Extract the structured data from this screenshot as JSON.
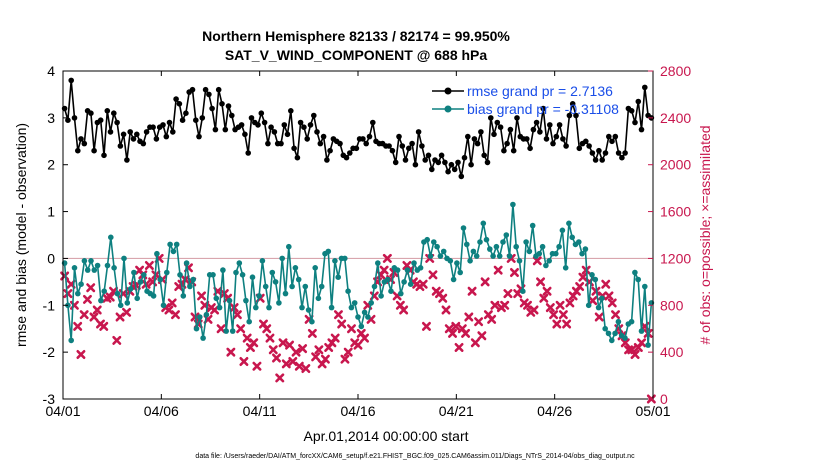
{
  "chart_data": {
    "type": "line",
    "title_line1": "Northern Hemisphere 82133 / 82174 = 99.950%",
    "title_line2": "SAT_V_WIND_COMPONENT @ 688 hPa",
    "xlabel": "Apr.01,2014 00:00:00 start",
    "ylabel_left": "rmse and bias (model - observation)",
    "ylabel_right": "# of obs: o=possible; ×=assimilated",
    "footer": "data file: /Users/raeder/DAI/ATM_forcXX/CAM6_setup/f.e21.FHIST_BGC.f09_025.CAM6assim.011/Diags_NTrS_2014-04/obs_diag_output.nc",
    "xlim": [
      0,
      30
    ],
    "ylim_left": [
      -3,
      4
    ],
    "ylim_right": [
      0,
      2800
    ],
    "x_ticks": [
      0,
      5,
      10,
      15,
      20,
      25,
      30
    ],
    "x_tick_labels": [
      "04/01",
      "04/06",
      "04/11",
      "04/16",
      "04/21",
      "04/26",
      "05/01"
    ],
    "y_ticks_left": [
      -3,
      -2,
      -1,
      0,
      1,
      2,
      3,
      4
    ],
    "y_tick_labels_left": [
      "-3",
      "-2",
      "-1",
      "0",
      "1",
      "2",
      "3",
      "4"
    ],
    "y_ticks_right": [
      0,
      400,
      800,
      1200,
      1600,
      2000,
      2400,
      2800
    ],
    "y_tick_labels_right": [
      "0",
      "400",
      "800",
      "1200",
      "1600",
      "2000",
      "2400",
      "2800"
    ],
    "colors": {
      "rmse": "#000000",
      "bias": "#0e8080",
      "obs": "#c8174e",
      "zero_line": "#d9a6ae",
      "legend_text": "#1a4ee8"
    },
    "series": [
      {
        "name": "rmse grand pr = 2.7136",
        "values": [
          3.2,
          2.95,
          3.8,
          3.0,
          2.3,
          2.55,
          2.45,
          3.15,
          3.1,
          2.3,
          2.9,
          2.95,
          2.2,
          3.15,
          2.7,
          3.1,
          2.9,
          2.4,
          2.65,
          2.1,
          2.7,
          2.55,
          2.65,
          2.5,
          2.45,
          2.7,
          2.8,
          2.8,
          2.55,
          2.8,
          2.85,
          2.6,
          2.9,
          2.7,
          3.4,
          3.3,
          2.95,
          3.1,
          3.55,
          3.6,
          2.95,
          2.6,
          3.0,
          3.6,
          3.5,
          3.2,
          2.75,
          3.6,
          3.3,
          2.75,
          3.25,
          3.05,
          2.75,
          2.8,
          2.85,
          2.65,
          2.25,
          3.0,
          2.9,
          2.85,
          3.1,
          2.9,
          2.45,
          2.8,
          2.7,
          2.45,
          2.45,
          2.85,
          2.65,
          3.15,
          2.35,
          2.15,
          2.9,
          2.8,
          2.55,
          2.85,
          3.05,
          2.7,
          2.45,
          2.6,
          2.1,
          2.3,
          2.55,
          2.5,
          2.45,
          2.2,
          2.15,
          2.25,
          2.35,
          2.35,
          2.55,
          2.55,
          2.45,
          2.6,
          2.9,
          2.5,
          2.45,
          2.45,
          2.4,
          2.4,
          2.3,
          2.05,
          2.6,
          2.4,
          2.1,
          2.35,
          2.45,
          2.0,
          2.7,
          2.4,
          2.1,
          2.2,
          1.9,
          2.1,
          2.05,
          2.2,
          2.05,
          1.85,
          2.0,
          1.9,
          2.05,
          1.75,
          2.15,
          2.6,
          2.0,
          2.55,
          2.45,
          2.7,
          2.2,
          2.05,
          3.0,
          2.65,
          2.9,
          2.8,
          2.3,
          2.45,
          2.75,
          2.3,
          3.0,
          2.6,
          2.55,
          2.55,
          2.35,
          2.75,
          2.9,
          2.7,
          3.2,
          2.55,
          2.85,
          2.45,
          2.6,
          2.85,
          2.55,
          2.4,
          3.05,
          3.3,
          3.05,
          2.35,
          2.45,
          2.5,
          2.4,
          2.25,
          2.1,
          2.3,
          2.1,
          2.25,
          2.6,
          2.5,
          2.6,
          2.25,
          2.15,
          2.25,
          3.2,
          3.15,
          2.9,
          3.35,
          2.75,
          3.65,
          3.05,
          3.0
        ],
        "color": "#000000",
        "marker": "circle"
      },
      {
        "name": "bias grand pr = -0.31108",
        "values": [
          -0.1,
          -1.0,
          -1.75,
          -0.2,
          -0.75,
          -0.55,
          -0.05,
          -0.25,
          -0.05,
          -0.25,
          -0.15,
          -0.9,
          -0.7,
          -0.15,
          0.45,
          -0.2,
          -0.75,
          -1.0,
          0.0,
          -0.95,
          -0.65,
          -0.3,
          -0.85,
          -0.5,
          -0.35,
          -0.7,
          -0.75,
          -0.8,
          0.1,
          -0.45,
          -1.0,
          -0.3,
          0.3,
          0.15,
          0.3,
          -0.35,
          -0.8,
          -0.1,
          -0.6,
          -0.45,
          -1.5,
          -1.25,
          -1.7,
          -1.2,
          -0.35,
          -0.35,
          -0.85,
          -1.05,
          -0.25,
          -1.55,
          -0.9,
          -1.55,
          -0.3,
          -0.1,
          -0.35,
          -0.9,
          -1.35,
          -0.4,
          -1.05,
          -0.8,
          -0.05,
          -0.6,
          -1.05,
          -0.3,
          -0.5,
          -0.95,
          0.0,
          -0.75,
          0.25,
          -0.6,
          -0.2,
          -0.45,
          -1.05,
          -0.6,
          -1.1,
          -1.35,
          -0.2,
          -0.85,
          -0.6,
          0.1,
          0.15,
          -1.05,
          -0.05,
          -0.4,
          0.0,
          0.0,
          -0.7,
          -1.05,
          -0.95,
          -1.25,
          -1.45,
          -1.15,
          -1.25,
          -0.95,
          -0.6,
          -0.1,
          -0.8,
          -0.5,
          -0.45,
          -0.7,
          -0.2,
          -0.25,
          -0.75,
          -0.5,
          -0.25,
          -0.55,
          -0.1,
          -0.25,
          -0.2,
          0.35,
          0.4,
          0.05,
          0.35,
          0.25,
          0.05,
          0.15,
          0.0,
          -0.05,
          -0.45,
          -0.1,
          -0.3,
          0.65,
          0.3,
          -0.05,
          0.15,
          0.05,
          0.35,
          0.75,
          0.4,
          0.2,
          0.05,
          0.25,
          0.05,
          0.35,
          0.5,
          0.05,
          1.15,
          0.25,
          -0.05,
          -0.7,
          0.35,
          0.15,
          0.7,
          0.05,
          0.1,
          0.25,
          -0.15,
          -0.05,
          0.1,
          0.1,
          0.25,
          0.6,
          -0.2,
          0.75,
          0.45,
          0.3,
          0.35,
          0.1,
          0.2,
          -1.0,
          -0.35,
          -0.45,
          -1.05,
          -0.85,
          -1.5,
          -1.6,
          -1.75,
          -1.6,
          -1.35,
          -1.65,
          -1.7,
          -1.4,
          -1.35,
          -0.3,
          -0.45,
          -1.55,
          -0.6,
          -1.85,
          -0.95
        ],
        "color": "#0e8080",
        "marker": "circle"
      },
      {
        "name": "# of obs assimilated",
        "values": [
          1050,
          900,
          980,
          800,
          620,
          380,
          720,
          850,
          950,
          700,
          760,
          640,
          620,
          860,
          870,
          920,
          500,
          700,
          900,
          740,
          920,
          960,
          970,
          1100,
          1060,
          980,
          1140,
          1000,
          1060,
          1200,
          1020,
          780,
          760,
          820,
          720,
          960,
          980,
          1020,
          1120,
          1000,
          700,
          640,
          880,
          800,
          680,
          780,
          760,
          920,
          600,
          900,
          860,
          400,
          780,
          720,
          600,
          320,
          520,
          440,
          480,
          280,
          860,
          640,
          600,
          520,
          420,
          350,
          180,
          480,
          300,
          460,
          320,
          400,
          280,
          430,
          260,
          680,
          560,
          360,
          420,
          300,
          340,
          440,
          480,
          520,
          720,
          640,
          340,
          400,
          600,
          480,
          460,
          560,
          520,
          800,
          680,
          880,
          1000,
          1060,
          1100,
          1200,
          1020,
          1080,
          880,
          800,
          760,
          1140,
          1100,
          1000,
          980,
          960,
          980,
          620,
          1200,
          1060,
          920,
          900,
          860,
          760,
          600,
          560,
          620,
          440,
          600,
          560,
          700,
          920,
          480,
          660,
          540,
          1000,
          720,
          680,
          800,
          1100,
          780,
          800,
          900,
          1200,
          1080,
          900,
          940,
          820,
          800,
          740,
          760,
          1180,
          1000,
          860,
          920,
          780,
          720,
          640,
          800,
          720,
          640,
          820,
          880,
          920,
          960,
          1040,
          1100,
          1000,
          840,
          920,
          700,
          880,
          980,
          880,
          820,
          720,
          600,
          540,
          480,
          420,
          420,
          380,
          440,
          480,
          620,
          560,
          0
        ],
        "color": "#c8174e",
        "marker": "x"
      }
    ],
    "legend_position": "top-right"
  }
}
